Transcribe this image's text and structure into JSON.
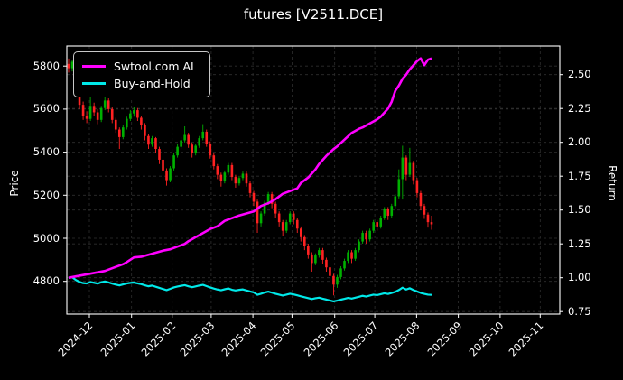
{
  "chart_data": {
    "type": "candlestick",
    "title": "futures [V2511.DCE]",
    "x_tick_labels": [
      "2024-12",
      "2025-01",
      "2025-02",
      "2025-03",
      "2025-04",
      "2025-05",
      "2025-06",
      "2025-07",
      "2025-08",
      "2025-09",
      "2025-10",
      "2025-11"
    ],
    "price_axis": {
      "label": "Price",
      "tick_labels": [
        "5800",
        "5600",
        "5400",
        "5200",
        "5000",
        "4800"
      ],
      "range": [
        4648,
        5893
      ]
    },
    "return_axis": {
      "label": "Return",
      "tick_labels": [
        "2.50",
        "2.25",
        "2.00",
        "1.75",
        "1.50",
        "1.25",
        "1.00",
        "0.75"
      ],
      "range": [
        0.73,
        2.71
      ]
    },
    "grid": true,
    "legend_position": "upper left",
    "up_color": "#00b000",
    "down_color": "#ff2222",
    "background_color": "#000000",
    "text_color": "#ffffff",
    "grid_color": "#555555",
    "candles_ohlc": [
      [
        5810,
        5835,
        5770,
        5790
      ],
      [
        5790,
        5830,
        5775,
        5820
      ],
      [
        5820,
        5825,
        5680,
        5700
      ],
      [
        5700,
        5710,
        5600,
        5620
      ],
      [
        5620,
        5635,
        5550,
        5570
      ],
      [
        5570,
        5590,
        5535,
        5555
      ],
      [
        5555,
        5670,
        5545,
        5615
      ],
      [
        5615,
        5630,
        5570,
        5585
      ],
      [
        5585,
        5600,
        5530,
        5550
      ],
      [
        5550,
        5615,
        5540,
        5605
      ],
      [
        5605,
        5655,
        5595,
        5640
      ],
      [
        5640,
        5650,
        5585,
        5600
      ],
      [
        5600,
        5610,
        5535,
        5550
      ],
      [
        5550,
        5560,
        5490,
        5505
      ],
      [
        5505,
        5515,
        5415,
        5470
      ],
      [
        5470,
        5525,
        5460,
        5515
      ],
      [
        5515,
        5565,
        5505,
        5555
      ],
      [
        5555,
        5595,
        5545,
        5580
      ],
      [
        5580,
        5610,
        5565,
        5595
      ],
      [
        5595,
        5605,
        5545,
        5560
      ],
      [
        5560,
        5570,
        5505,
        5525
      ],
      [
        5525,
        5535,
        5455,
        5475
      ],
      [
        5475,
        5485,
        5415,
        5435
      ],
      [
        5435,
        5475,
        5425,
        5465
      ],
      [
        5465,
        5470,
        5395,
        5415
      ],
      [
        5415,
        5425,
        5345,
        5365
      ],
      [
        5365,
        5375,
        5295,
        5315
      ],
      [
        5315,
        5325,
        5245,
        5270
      ],
      [
        5270,
        5335,
        5260,
        5325
      ],
      [
        5325,
        5395,
        5315,
        5385
      ],
      [
        5385,
        5440,
        5375,
        5425
      ],
      [
        5425,
        5470,
        5415,
        5455
      ],
      [
        5455,
        5520,
        5445,
        5480
      ],
      [
        5480,
        5490,
        5420,
        5435
      ],
      [
        5435,
        5445,
        5375,
        5395
      ],
      [
        5395,
        5440,
        5385,
        5430
      ],
      [
        5430,
        5475,
        5420,
        5465
      ],
      [
        5465,
        5530,
        5455,
        5495
      ],
      [
        5495,
        5505,
        5425,
        5440
      ],
      [
        5440,
        5450,
        5370,
        5385
      ],
      [
        5385,
        5395,
        5320,
        5335
      ],
      [
        5335,
        5345,
        5275,
        5295
      ],
      [
        5295,
        5305,
        5240,
        5265
      ],
      [
        5265,
        5315,
        5255,
        5305
      ],
      [
        5305,
        5350,
        5295,
        5340
      ],
      [
        5340,
        5350,
        5270,
        5285
      ],
      [
        5285,
        5295,
        5235,
        5255
      ],
      [
        5255,
        5290,
        5245,
        5280
      ],
      [
        5280,
        5310,
        5270,
        5300
      ],
      [
        5300,
        5310,
        5240,
        5255
      ],
      [
        5255,
        5265,
        5190,
        5210
      ],
      [
        5210,
        5220,
        5150,
        5170
      ],
      [
        5170,
        5180,
        5025,
        5070
      ],
      [
        5070,
        5125,
        5055,
        5115
      ],
      [
        5115,
        5175,
        5105,
        5165
      ],
      [
        5165,
        5215,
        5155,
        5205
      ],
      [
        5205,
        5215,
        5140,
        5160
      ],
      [
        5160,
        5170,
        5095,
        5115
      ],
      [
        5115,
        5125,
        5055,
        5075
      ],
      [
        5075,
        5085,
        5010,
        5035
      ],
      [
        5035,
        5085,
        5025,
        5075
      ],
      [
        5075,
        5125,
        5065,
        5115
      ],
      [
        5115,
        5125,
        5065,
        5085
      ],
      [
        5085,
        5095,
        5025,
        5045
      ],
      [
        5045,
        5055,
        4985,
        5005
      ],
      [
        5005,
        5015,
        4945,
        4965
      ],
      [
        4965,
        4975,
        4905,
        4925
      ],
      [
        4925,
        4935,
        4845,
        4885
      ],
      [
        4885,
        4930,
        4875,
        4920
      ],
      [
        4920,
        4955,
        4910,
        4945
      ],
      [
        4945,
        4955,
        4880,
        4900
      ],
      [
        4900,
        4910,
        4845,
        4865
      ],
      [
        4865,
        4875,
        4785,
        4825
      ],
      [
        4825,
        4835,
        4735,
        4785
      ],
      [
        4785,
        4830,
        4770,
        4820
      ],
      [
        4820,
        4870,
        4810,
        4860
      ],
      [
        4860,
        4905,
        4850,
        4895
      ],
      [
        4895,
        4945,
        4885,
        4935
      ],
      [
        4935,
        4945,
        4885,
        4905
      ],
      [
        4905,
        4955,
        4895,
        4945
      ],
      [
        4945,
        4995,
        4935,
        4985
      ],
      [
        4985,
        5035,
        4975,
        5025
      ],
      [
        5025,
        5035,
        4975,
        4995
      ],
      [
        4995,
        5045,
        4985,
        5035
      ],
      [
        5035,
        5085,
        5025,
        5075
      ],
      [
        5075,
        5085,
        5035,
        5055
      ],
      [
        5055,
        5105,
        5045,
        5095
      ],
      [
        5095,
        5145,
        5085,
        5135
      ],
      [
        5135,
        5145,
        5085,
        5105
      ],
      [
        5105,
        5160,
        5095,
        5150
      ],
      [
        5150,
        5205,
        5140,
        5195
      ],
      [
        5195,
        5320,
        5185,
        5275
      ],
      [
        5275,
        5430,
        5180,
        5375
      ],
      [
        5375,
        5385,
        5270,
        5295
      ],
      [
        5295,
        5420,
        5285,
        5350
      ],
      [
        5350,
        5360,
        5250,
        5270
      ],
      [
        5270,
        5280,
        5190,
        5210
      ],
      [
        5210,
        5220,
        5130,
        5150
      ],
      [
        5150,
        5160,
        5090,
        5110
      ],
      [
        5110,
        5120,
        5050,
        5075
      ],
      [
        5075,
        5105,
        5040,
        5065
      ]
    ],
    "series": [
      {
        "name": "Swtool.com AI",
        "color": "#ff00ff",
        "axis": "return",
        "points": [
          [
            0,
            1.0
          ],
          [
            2,
            1.01
          ],
          [
            3,
            1.015
          ],
          [
            6,
            1.03
          ],
          [
            8,
            1.04
          ],
          [
            10,
            1.05
          ],
          [
            13,
            1.08
          ],
          [
            15,
            1.1
          ],
          [
            16,
            1.115
          ],
          [
            18,
            1.15
          ],
          [
            20,
            1.155
          ],
          [
            22,
            1.17
          ],
          [
            24,
            1.185
          ],
          [
            26,
            1.2
          ],
          [
            28,
            1.21
          ],
          [
            30,
            1.23
          ],
          [
            32,
            1.25
          ],
          [
            33,
            1.27
          ],
          [
            35,
            1.3
          ],
          [
            37,
            1.33
          ],
          [
            39,
            1.36
          ],
          [
            41,
            1.38
          ],
          [
            43,
            1.42
          ],
          [
            45,
            1.44
          ],
          [
            47,
            1.46
          ],
          [
            49,
            1.475
          ],
          [
            51,
            1.49
          ],
          [
            53,
            1.53
          ],
          [
            55,
            1.55
          ],
          [
            57,
            1.58
          ],
          [
            59,
            1.62
          ],
          [
            61,
            1.64
          ],
          [
            63,
            1.66
          ],
          [
            64,
            1.7
          ],
          [
            66,
            1.74
          ],
          [
            68,
            1.8
          ],
          [
            69,
            1.84
          ],
          [
            71,
            1.9
          ],
          [
            73,
            1.95
          ],
          [
            74,
            1.97
          ],
          [
            76,
            2.02
          ],
          [
            78,
            2.07
          ],
          [
            80,
            2.1
          ],
          [
            81,
            2.11
          ],
          [
            83,
            2.14
          ],
          [
            85,
            2.17
          ],
          [
            86,
            2.19
          ],
          [
            87,
            2.22
          ],
          [
            88,
            2.25
          ],
          [
            89,
            2.3
          ],
          [
            90,
            2.38
          ],
          [
            91,
            2.42
          ],
          [
            92,
            2.47
          ],
          [
            93,
            2.5
          ],
          [
            94,
            2.54
          ],
          [
            95,
            2.57
          ],
          [
            96,
            2.6
          ],
          [
            97,
            2.62
          ],
          [
            98,
            2.57
          ],
          [
            99,
            2.61
          ],
          [
            100,
            2.62
          ]
        ]
      },
      {
        "name": "Buy-and-Hold",
        "color": "#00e8e8",
        "axis": "return",
        "derivation": "candle_close / initial_price",
        "initial_price": 5800
      }
    ]
  }
}
